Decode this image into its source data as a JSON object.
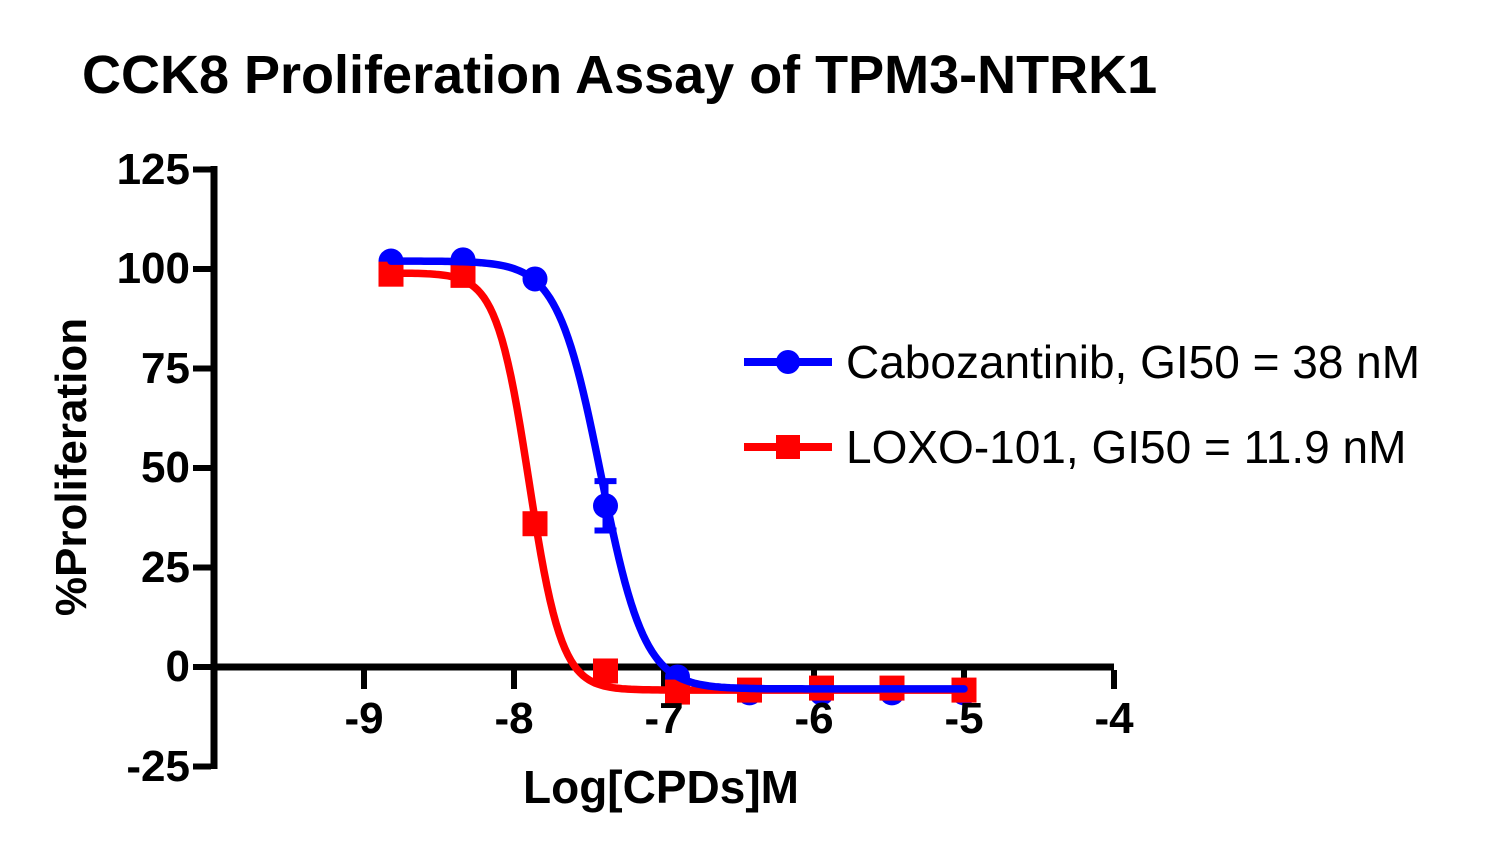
{
  "title": "CCK8 Proliferation Assay of TPM3-NTRK1",
  "axes": {
    "x": {
      "label": "Log[CPDs]M",
      "ticks": [
        -9,
        -8,
        -7,
        -6,
        -5,
        -4
      ]
    },
    "y": {
      "label": "%Proliferation",
      "ticks": [
        125,
        100,
        75,
        50,
        25,
        0,
        -25
      ]
    }
  },
  "colors": {
    "axis": "#000000",
    "cabozantinib": "#0000FF",
    "loxo101": "#FF0000",
    "text": "#000000"
  },
  "legend": {
    "items": [
      {
        "label": "Cabozantinib, GI50 = 38 nM",
        "marker": "circle",
        "color": "#0000FF"
      },
      {
        "label": "LOXO-101, GI50 = 11.9 nM",
        "marker": "square",
        "color": "#FF0000"
      }
    ]
  },
  "chart_data": {
    "type": "line",
    "title": "CCK8 Proliferation Assay of TPM3-NTRK1",
    "xlabel": "Log[CPDs]M",
    "ylabel": "%Proliferation",
    "xlim": [
      -10,
      -4
    ],
    "ylim": [
      -25,
      125
    ],
    "grid": false,
    "legend_position": "right-middle",
    "x_ticks": [
      -9,
      -8,
      -7,
      -6,
      -5,
      -4
    ],
    "y_ticks": [
      125,
      100,
      75,
      50,
      25,
      0,
      -25
    ],
    "series": [
      {
        "name": "Cabozantinib, GI50 = 38 nM",
        "compound": "Cabozantinib",
        "gi50_nM": 38,
        "color": "#0000FF",
        "marker": "circle",
        "x": [
          -8.82,
          -8.34,
          -7.86,
          -7.39,
          -6.91,
          -6.43,
          -5.95,
          -5.48,
          -5.0
        ],
        "y": [
          102,
          102.3,
          97.5,
          40.5,
          -2.5,
          -6.5,
          -6.5,
          -6.5,
          -6.5
        ],
        "y_err": [
          0,
          0,
          0,
          6.2,
          0,
          0,
          0,
          0,
          0
        ],
        "fit": {
          "model": "4PL",
          "top": 102,
          "bottom": -5.5,
          "logec50": -7.42,
          "hill": 3.0
        }
      },
      {
        "name": "LOXO-101, GI50 = 11.9 nM",
        "compound": "LOXO-101",
        "gi50_nM": 11.9,
        "color": "#FF0000",
        "marker": "square",
        "x": [
          -8.82,
          -8.34,
          -7.86,
          -7.39,
          -6.91,
          -6.43,
          -5.95,
          -5.48,
          -5.0
        ],
        "y": [
          98.7,
          98.4,
          36,
          -1,
          -6.3,
          -5.8,
          -5.3,
          -5.3,
          -5.8
        ],
        "y_err": [
          0,
          0,
          0,
          0,
          0,
          0,
          0,
          0,
          0
        ],
        "fit": {
          "model": "4PL",
          "top": 99,
          "bottom": -5.8,
          "logec50": -7.9,
          "hill": 4.0
        }
      }
    ]
  }
}
